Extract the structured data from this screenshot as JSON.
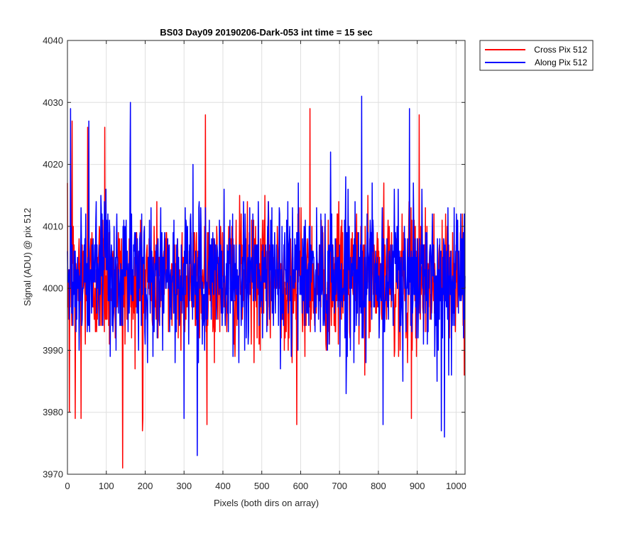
{
  "chart_data": {
    "type": "line",
    "title": "BS03 Day09 20190206-Dark-053 int time = 15 sec",
    "xlabel": "Pixels (both dirs on array)",
    "ylabel": "Signal (ADU) @ pix 512",
    "xlim": [
      0,
      1023
    ],
    "ylim": [
      3970,
      4040
    ],
    "xticks": [
      0,
      100,
      200,
      300,
      400,
      500,
      600,
      700,
      800,
      900,
      1000
    ],
    "yticks": [
      3970,
      3980,
      3990,
      4000,
      4010,
      4020,
      4030,
      4040
    ],
    "xtick_labels": [
      "0",
      "100",
      "200",
      "300",
      "400",
      "500",
      "600",
      "700",
      "800",
      "900",
      "1000"
    ],
    "ytick_labels": [
      "3970",
      "3980",
      "3990",
      "4000",
      "4010",
      "4020",
      "4030",
      "4040"
    ],
    "grid": true,
    "legend_position": "outside-top-right",
    "colors": {
      "cross": "#ff0000",
      "along": "#0000ff",
      "axes": "#262626",
      "grid": "#dfdfdf"
    },
    "series_seed": {
      "cross": {
        "mean": 4001.5,
        "spread": 5.5
      },
      "along": {
        "mean": 4002.0,
        "spread": 5.8
      }
    },
    "series_extremes": {
      "cross": [
        [
          5,
          3980
        ],
        [
          12,
          4027
        ],
        [
          20,
          3979
        ],
        [
          35,
          3979
        ],
        [
          52,
          4026
        ],
        [
          96,
          4026
        ],
        [
          142,
          3971
        ],
        [
          193,
          3977
        ],
        [
          355,
          4028
        ],
        [
          590,
          3978
        ],
        [
          624,
          4029
        ],
        [
          885,
          3979
        ],
        [
          905,
          4028
        ]
      ],
      "along": [
        [
          8,
          4029
        ],
        [
          55,
          4027
        ],
        [
          162,
          4030
        ],
        [
          300,
          3979
        ],
        [
          334,
          3973
        ],
        [
          757,
          4031
        ],
        [
          812,
          3978
        ],
        [
          880,
          4029
        ],
        [
          962,
          3977
        ],
        [
          970,
          3976
        ]
      ]
    },
    "series": [
      {
        "name": "Cross Pix 512",
        "color": "#ff0000"
      },
      {
        "name": "Along Pix 512",
        "color": "#0000ff"
      }
    ]
  }
}
